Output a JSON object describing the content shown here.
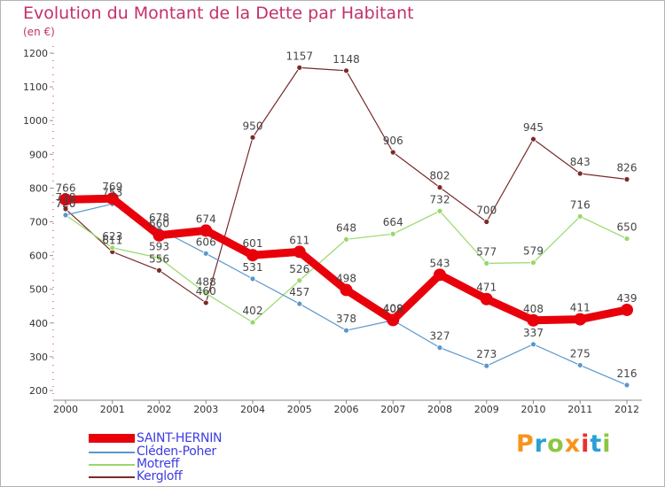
{
  "title": "Evolution du Montant de la Dette par Habitant",
  "subtitle": "(en €)",
  "logo": {
    "text": "Proxiti",
    "colors": [
      "#f7941d",
      "#2a9fd8",
      "#8cc63f",
      "#f7941d",
      "#e8312f",
      "#2a9fd8",
      "#8cc63f"
    ]
  },
  "chart_data": {
    "type": "line",
    "title": "Evolution du Montant de la Dette par Habitant",
    "subtitle": "(en €)",
    "xlabel": "",
    "ylabel": "",
    "x": [
      2000,
      2001,
      2002,
      2003,
      2004,
      2005,
      2006,
      2007,
      2008,
      2009,
      2010,
      2011,
      2012
    ],
    "ylim": [
      200,
      1200
    ],
    "yticks": [
      200,
      300,
      400,
      500,
      600,
      700,
      800,
      900,
      1000,
      1100,
      1200
    ],
    "grid": false,
    "legend_position": "bottom-left",
    "series": [
      {
        "name": "SAINT-HERNIN",
        "color": "#e8000b",
        "width": 9,
        "values": [
          766,
          769,
          660,
          674,
          601,
          611,
          498,
          409,
          543,
          471,
          408,
          411,
          439
        ],
        "labels": [
          "766",
          "769",
          "660",
          "674",
          "601",
          "611",
          "498",
          "409",
          "543",
          "471",
          "408",
          "411",
          "439"
        ]
      },
      {
        "name": "Cléden-Poher",
        "color": "#5b97cc",
        "width": 1.2,
        "values": [
          720,
          753,
          678,
          606,
          531,
          457,
          378,
          408,
          327,
          273,
          337,
          275,
          216
        ],
        "labels": [
          "720",
          "753",
          "678",
          "606",
          "531",
          "457",
          "378",
          "408",
          "327",
          "273",
          "337",
          "275",
          "216"
        ]
      },
      {
        "name": "Motreff",
        "color": "#98d86a",
        "width": 1.2,
        "values": [
          720,
          623,
          593,
          488,
          402,
          526,
          648,
          664,
          732,
          577,
          579,
          716,
          650
        ],
        "labels": [
          "720",
          "623",
          "593",
          "488",
          "402",
          "526",
          "648",
          "664",
          "732",
          "577",
          "579",
          "716",
          "650"
        ]
      },
      {
        "name": "Kergloff",
        "color": "#7a2a2a",
        "width": 1.2,
        "values": [
          738,
          611,
          556,
          460,
          950,
          1157,
          1148,
          906,
          802,
          700,
          945,
          843,
          826
        ],
        "labels": [
          "738",
          "611",
          "556",
          "460",
          "950",
          "1157",
          "1148",
          "906",
          "802",
          "700",
          "945",
          "843",
          "826"
        ]
      }
    ]
  }
}
